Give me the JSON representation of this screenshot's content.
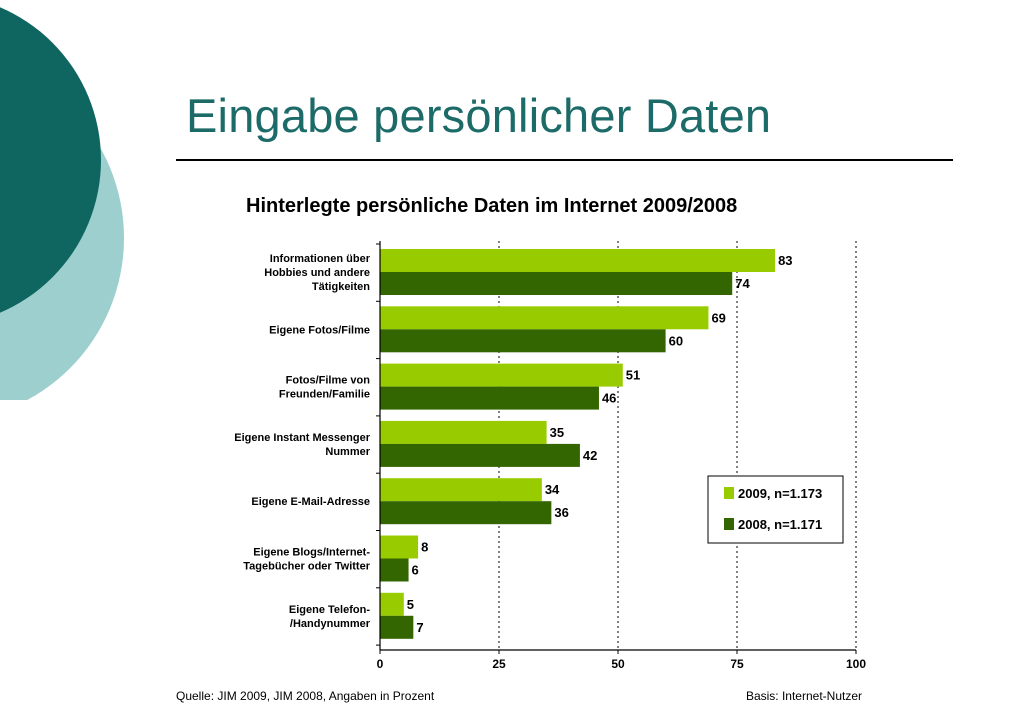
{
  "slide": {
    "title": "Eingabe persönlicher Daten"
  },
  "colors": {
    "title": "#1c6b69",
    "deco_dark": "#0f6560",
    "deco_light": "#9ecfcf",
    "series_2009": "#99cc00",
    "series_2008": "#336600"
  },
  "chart_data": {
    "type": "bar",
    "orientation": "horizontal",
    "title": "Hinterlegte persönliche Daten im Internet 2009/2008",
    "categories": [
      [
        "Informationen über",
        "Hobbies und andere",
        "Tätigkeiten"
      ],
      [
        "Eigene Fotos/Filme"
      ],
      [
        "Fotos/Filme von",
        "Freunden/Familie"
      ],
      [
        "Eigene Instant Messenger",
        "Nummer"
      ],
      [
        "Eigene E-Mail-Adresse"
      ],
      [
        "Eigene Blogs/Internet-",
        "Tagebücher oder Twitter"
      ],
      [
        "Eigene Telefon-",
        "/Handynummer"
      ]
    ],
    "series": [
      {
        "name": "2009, n=1.173",
        "color": "#99cc00",
        "values": [
          83,
          69,
          51,
          35,
          34,
          8,
          5
        ]
      },
      {
        "name": "2008, n=1.171",
        "color": "#336600",
        "values": [
          74,
          60,
          46,
          42,
          36,
          6,
          7
        ]
      }
    ],
    "xlim": [
      0,
      100
    ],
    "xticks": [
      "0",
      "25",
      "50",
      "75",
      "100"
    ],
    "grid": "dashed vertical",
    "legend_position": "right",
    "source": "Quelle: JIM 2009, JIM 2008, Angaben in Prozent",
    "basis": "Basis: Internet-Nutzer"
  }
}
